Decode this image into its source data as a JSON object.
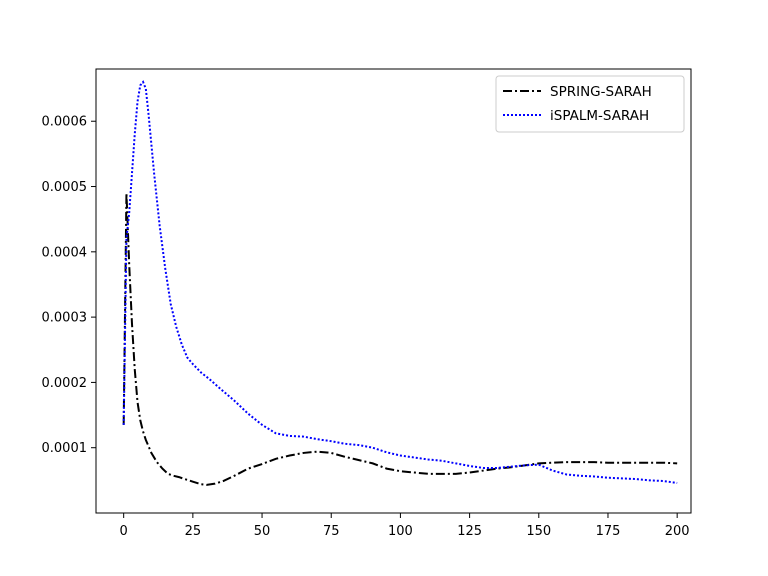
{
  "chart_data": {
    "type": "line",
    "title": "",
    "xlabel": "",
    "ylabel": "",
    "xlim": [
      -10,
      205
    ],
    "ylim": [
      0.0,
      0.00068
    ],
    "x_ticks": [
      0,
      25,
      50,
      75,
      100,
      125,
      150,
      175,
      200
    ],
    "x_tick_labels": [
      "0",
      "25",
      "50",
      "75",
      "100",
      "125",
      "150",
      "175",
      "200"
    ],
    "y_ticks": [
      0.0001,
      0.0002,
      0.0003,
      0.0004,
      0.0005,
      0.0006
    ],
    "y_tick_labels": [
      "0.0001",
      "0.0002",
      "0.0003",
      "0.0004",
      "0.0005",
      "0.0006"
    ],
    "grid": false,
    "legend_position": "top-right",
    "series": [
      {
        "name": "SPRING-SARAH",
        "color": "#000000",
        "style": "dashdot",
        "x": [
          0,
          1,
          2,
          3,
          4,
          5,
          6,
          7,
          8,
          10,
          12,
          14,
          16,
          18,
          20,
          22,
          25,
          28,
          30,
          33,
          36,
          40,
          45,
          50,
          55,
          60,
          65,
          70,
          75,
          80,
          85,
          90,
          95,
          100,
          105,
          110,
          115,
          120,
          125,
          130,
          135,
          140,
          145,
          150,
          155,
          160,
          165,
          170,
          175,
          180,
          185,
          190,
          195,
          200
        ],
        "y": [
          0.000135,
          0.00049,
          0.00038,
          0.00029,
          0.00022,
          0.00017,
          0.000142,
          0.000125,
          0.000112,
          9.2e-05,
          7.8e-05,
          6.8e-05,
          6e-05,
          5.7e-05,
          5.5e-05,
          5.2e-05,
          4.8e-05,
          4.4e-05,
          4.3e-05,
          4.5e-05,
          4.9e-05,
          5.7e-05,
          6.8e-05,
          7.5e-05,
          8.3e-05,
          8.8e-05,
          9.2e-05,
          9.4e-05,
          9.2e-05,
          8.6e-05,
          8.1e-05,
          7.6e-05,
          6.8e-05,
          6.4e-05,
          6.2e-05,
          6e-05,
          6e-05,
          6e-05,
          6.2e-05,
          6.5e-05,
          6.8e-05,
          7e-05,
          7.3e-05,
          7.6e-05,
          7.7e-05,
          7.8e-05,
          7.8e-05,
          7.8e-05,
          7.7e-05,
          7.7e-05,
          7.7e-05,
          7.7e-05,
          7.7e-05,
          7.6e-05
        ]
      },
      {
        "name": "iSPALM-SARAH",
        "color": "#0000ff",
        "style": "dotted",
        "x": [
          0,
          1,
          2,
          3,
          4,
          5,
          6,
          7,
          8,
          9,
          10,
          11,
          12,
          13,
          15,
          17,
          19,
          21,
          23,
          25,
          28,
          31,
          35,
          40,
          45,
          50,
          55,
          60,
          65,
          70,
          75,
          80,
          85,
          90,
          95,
          100,
          105,
          110,
          115,
          120,
          125,
          130,
          135,
          140,
          145,
          150,
          155,
          160,
          165,
          170,
          175,
          180,
          185,
          190,
          195,
          200
        ],
        "y": [
          0.000135,
          0.00042,
          0.00046,
          0.00052,
          0.00058,
          0.00063,
          0.000655,
          0.00066,
          0.00065,
          0.00061,
          0.000565,
          0.00052,
          0.00048,
          0.00044,
          0.000375,
          0.00032,
          0.000285,
          0.000258,
          0.000238,
          0.000228,
          0.000215,
          0.000205,
          0.00019,
          0.000172,
          0.000152,
          0.000135,
          0.000122,
          0.000118,
          0.000117,
          0.000113,
          0.00011,
          0.000106,
          0.000104,
          0.0001,
          9.3e-05,
          8.8e-05,
          8.5e-05,
          8.2e-05,
          8e-05,
          7.6e-05,
          7.2e-05,
          6.9e-05,
          6.9e-05,
          7.1e-05,
          7.3e-05,
          7.4e-05,
          6.5e-05,
          5.9e-05,
          5.7e-05,
          5.6e-05,
          5.4e-05,
          5.3e-05,
          5.2e-05,
          5e-05,
          4.9e-05,
          4.6e-05
        ]
      }
    ]
  }
}
